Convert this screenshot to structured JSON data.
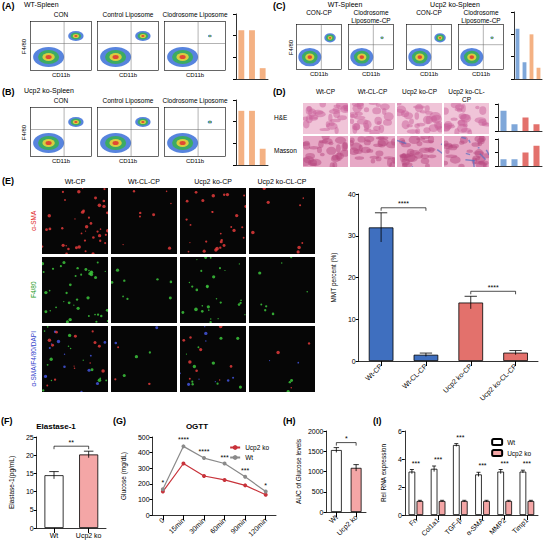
{
  "figure": {
    "A": {
      "letter": "(A)",
      "title": "WT-Spleen",
      "plots": [
        "CON",
        "Control Liposome",
        "Clodrosome Liposome"
      ]
    },
    "B": {
      "letter": "(B)",
      "title": "Ucp2 ko-Spleen",
      "plots": [
        "CON",
        "Control Liposome",
        "Clodrosome Liposome"
      ]
    },
    "C": {
      "letter": "(C)",
      "groups": [
        {
          "title": "WT-Spleen",
          "plots": [
            "CON-CP",
            "Clodrosome Liposome-CP"
          ]
        },
        {
          "title": "Ucp2 ko-Spleen",
          "plots": [
            "CON-CP",
            "Clodrosome Liposome-CP"
          ]
        }
      ]
    },
    "flow_axes": {
      "x": "CD11b",
      "y": "F4/80"
    },
    "D": {
      "letter": "(D)",
      "columns": [
        "Wt-CP",
        "Wt-CL-CP",
        "Ucp2 ko-CP",
        "Ucp2 ko-CL-CP"
      ],
      "rows": [
        "H&E",
        "Masson"
      ]
    },
    "E": {
      "letter": "(E)",
      "columns": [
        "Wt-CP",
        "Wt-CL-CP",
        "Ucp2 ko-CP",
        "Ucp2 ko-CL-CP"
      ],
      "rows": [
        "α-SMA",
        "F4/80",
        "α-SMA/F4/80/DAPI"
      ]
    }
  },
  "chart_data": [
    {
      "type": "bar",
      "values": [
        9,
        9,
        2
      ],
      "colors": [
        "#f4b183",
        "#f4b183",
        "#f4b183"
      ],
      "ylim": [
        0,
        12
      ],
      "yticks": [
        0,
        4,
        8,
        12
      ],
      "tick_labels": false
    },
    {
      "type": "bar",
      "values": [
        10,
        10,
        3
      ],
      "colors": [
        "#f4b183",
        "#f4b183",
        "#f4b183"
      ],
      "ylim": [
        0,
        12
      ],
      "yticks": [
        0,
        4,
        8,
        12
      ],
      "tick_labels": false
    },
    {
      "type": "bar",
      "values": [
        9,
        3,
        8,
        2
      ],
      "colors": [
        "#7fa7d9",
        "#7fa7d9",
        "#f4b183",
        "#f4b183"
      ],
      "ylim": [
        0,
        12
      ],
      "yticks": [
        0,
        4,
        8,
        12
      ],
      "tick_labels": false
    },
    {
      "type": "bar",
      "values": [
        3,
        1,
        2,
        1
      ],
      "colors": [
        "#7fa7d9",
        "#7fa7d9",
        "#e3716c",
        "#e3716c"
      ],
      "ylim": [
        0,
        4
      ],
      "yticks": [
        0,
        2,
        4
      ],
      "tick_labels": false
    },
    {
      "type": "bar",
      "values": [
        1,
        1,
        2,
        3
      ],
      "colors": [
        "#7fa7d9",
        "#7fa7d9",
        "#e3716c",
        "#e3716c"
      ],
      "ylim": [
        0,
        4
      ],
      "yticks": [
        0,
        2,
        4
      ],
      "tick_labels": false
    },
    {
      "type": "bar",
      "categories": [
        "Wt-CP",
        "Wt-CL-CP",
        "Ucp2 ko-CP",
        "Ucp2 ko-CL-CP"
      ],
      "values": [
        32,
        1.5,
        14,
        2
      ],
      "errors": [
        3.5,
        0.4,
        1.5,
        0.5
      ],
      "colors": [
        "#3f6fbf",
        "#3f6fbf",
        "#e3716c",
        "#e3716c"
      ],
      "ylabel": "MMT percent (%)",
      "ylim": [
        0,
        40
      ],
      "yticks": [
        0,
        10,
        20,
        30,
        40
      ],
      "significance": [
        {
          "from": "Wt-CP",
          "to": "Wt-CL-CP",
          "label": "****"
        },
        {
          "from": "Ucp2 ko-CP",
          "to": "Ucp2 ko-CL-CP",
          "label": "****"
        }
      ]
    },
    {
      "type": "bar",
      "letter": "(F)",
      "title": "Elastase-1",
      "categories": [
        "Wt",
        "Ucp2 ko"
      ],
      "values": [
        14.5,
        20.2
      ],
      "errors": [
        1.0,
        0.9
      ],
      "colors": [
        "#ffffff",
        "#f4a6a6"
      ],
      "ylabel": "Elastase-1(pg/mL)",
      "ylim": [
        0,
        25
      ],
      "yticks": [
        0,
        5,
        10,
        15,
        20,
        25
      ],
      "significance": [
        {
          "from": "Wt",
          "to": "Ucp2 ko",
          "label": "**"
        }
      ]
    },
    {
      "type": "line",
      "letter": "(G)",
      "title": "OGTT",
      "categories": [
        "0",
        "15min",
        "30min",
        "60min",
        "90min",
        "120min"
      ],
      "series": [
        {
          "name": "Ucp2 ko",
          "color": "#c8323a",
          "values": [
            150,
            330,
            250,
            225,
            190,
            130
          ]
        },
        {
          "name": "Wt",
          "color": "#8a8a8a",
          "values": [
            165,
            440,
            365,
            330,
            245,
            150
          ]
        }
      ],
      "ylabel": "Glucose (mg/dL)",
      "ylim": [
        0,
        500
      ],
      "yticks": [
        0,
        100,
        200,
        300,
        400,
        500
      ],
      "sig_labels": [
        "*",
        "****",
        "****",
        "***",
        "***",
        "*"
      ],
      "legend": "top-right",
      "marker": "circle"
    },
    {
      "type": "bar",
      "letter": "(H)",
      "categories": [
        "Wt",
        "Ucp2 ko"
      ],
      "values": [
        1530,
        1090
      ],
      "errors": [
        60,
        80
      ],
      "colors": [
        "#ffffff",
        "#f4a6a6"
      ],
      "ylabel": "AUC of Glucose levels",
      "ylim": [
        0,
        2000
      ],
      "yticks": [
        0,
        500,
        1000,
        1500,
        2000
      ],
      "significance": [
        {
          "from": "Wt",
          "to": "Ucp2 ko",
          "label": "*"
        }
      ]
    },
    {
      "type": "bar",
      "letter": "(I)",
      "categories": [
        "Fn",
        "Col1a1",
        "TGF-β",
        "α-SMA",
        "MMP2",
        "Timp1"
      ],
      "series": [
        {
          "name": "Wt",
          "color": "#ffffff",
          "values": [
            3.1,
            3.3,
            5.0,
            2.9,
            3.1,
            3.1
          ],
          "errors": [
            0.15,
            0.2,
            0.1,
            0.15,
            0.15,
            0.1
          ]
        },
        {
          "name": "Ucp2 ko",
          "color": "#f4a6a6",
          "values": [
            1.0,
            1.0,
            1.0,
            1.0,
            1.0,
            1.0
          ],
          "errors": [
            0.05,
            0.05,
            0.05,
            0.05,
            0.05,
            0.05
          ]
        }
      ],
      "ylabel": "Rel RNA expression",
      "ylim": [
        0,
        6
      ],
      "yticks": [
        0,
        2,
        4,
        6
      ],
      "sig_labels": [
        "***",
        "***",
        "***",
        "***",
        "***",
        "***"
      ],
      "legend": "top-right"
    }
  ]
}
